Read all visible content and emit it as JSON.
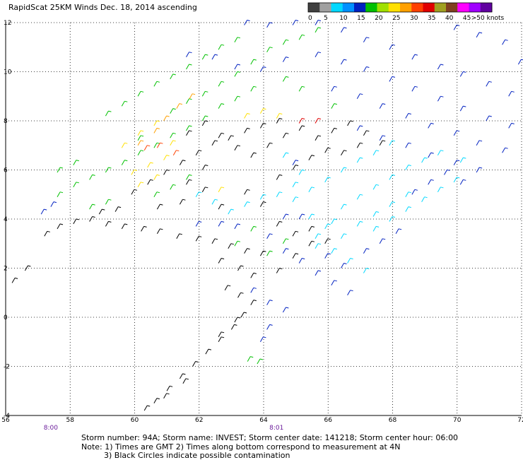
{
  "chart_data": {
    "type": "scatter",
    "title": "RapidScat 25KM Winds Dec. 18, 2014 ascending",
    "x_ticks": [
      "56",
      "58",
      "60",
      "62",
      "64",
      "66",
      "68",
      "70",
      "72"
    ],
    "y_ticks": [
      "12",
      "10",
      "8",
      "6",
      "4",
      "2",
      "0",
      "-2",
      "-4"
    ],
    "xlim": [
      56,
      72
    ],
    "ylim": [
      -4,
      12
    ],
    "grid": true,
    "time_labels": [
      {
        "lon": 57.4,
        "text": "8:00"
      },
      {
        "lon": 64.4,
        "text": "8:01"
      }
    ],
    "colorbar": {
      "ticks": [
        "0",
        "5",
        "10",
        "15",
        "20",
        "25",
        "30",
        "35",
        "40",
        "45",
        ">50 knots"
      ],
      "colors": [
        "#404040",
        "#a0a0a0",
        "#00d8ff",
        "#0090ff",
        "#0020c0",
        "#00c000",
        "#a0e000",
        "#ffe000",
        "#ffa000",
        "#ff4000",
        "#e00000",
        "#a0a020",
        "#804020",
        "#ff00ff",
        "#a000ff",
        "#6000a0"
      ]
    },
    "series": [
      {
        "color": "#000000",
        "points": [
          [
            57.2,
            3.3
          ],
          [
            57.6,
            3.6
          ],
          [
            58.1,
            3.8
          ],
          [
            58.6,
            3.9
          ],
          [
            59.1,
            3.7
          ],
          [
            59.6,
            3.6
          ],
          [
            60.2,
            3.5
          ],
          [
            60.7,
            3.4
          ],
          [
            61.3,
            3.2
          ],
          [
            61.9,
            3.1
          ],
          [
            62.4,
            3.0
          ],
          [
            62.9,
            2.8
          ],
          [
            63.4,
            2.6
          ],
          [
            63.9,
            2.5
          ],
          [
            62.6,
            2.2
          ],
          [
            63.2,
            1.9
          ],
          [
            63.6,
            1.6
          ],
          [
            62.8,
            1.1
          ],
          [
            63.2,
            0.8
          ],
          [
            63.6,
            0.5
          ],
          [
            63.3,
            0.0
          ],
          [
            63.0,
            -0.5
          ],
          [
            62.6,
            -1.0
          ],
          [
            62.2,
            -1.5
          ],
          [
            61.8,
            -2.0
          ],
          [
            61.4,
            -2.5
          ],
          [
            61.0,
            -3.0
          ],
          [
            60.6,
            -3.5
          ],
          [
            60.3,
            -3.8
          ],
          [
            59.9,
            5.0
          ],
          [
            60.4,
            5.4
          ],
          [
            60.9,
            5.8
          ],
          [
            61.4,
            6.2
          ],
          [
            61.9,
            6.6
          ],
          [
            62.4,
            7.0
          ],
          [
            62.9,
            7.2
          ],
          [
            63.4,
            7.5
          ],
          [
            63.9,
            7.7
          ],
          [
            64.4,
            7.9
          ],
          [
            61.6,
            7.4
          ],
          [
            62.1,
            7.8
          ],
          [
            62.6,
            7.3
          ],
          [
            63.1,
            6.8
          ],
          [
            63.6,
            6.5
          ],
          [
            64.1,
            6.9
          ],
          [
            64.6,
            7.3
          ],
          [
            65.1,
            7.6
          ],
          [
            65.6,
            7.2
          ],
          [
            66.1,
            7.5
          ],
          [
            66.6,
            7.8
          ],
          [
            67.1,
            7.4
          ],
          [
            67.6,
            7.0
          ],
          [
            64.4,
            5.6
          ],
          [
            64.9,
            6.0
          ],
          [
            65.4,
            6.4
          ],
          [
            65.9,
            6.7
          ],
          [
            63.4,
            5.0
          ],
          [
            63.9,
            4.5
          ],
          [
            64.4,
            3.7
          ],
          [
            64.9,
            3.3
          ],
          [
            65.4,
            2.9
          ],
          [
            62.1,
            5.1
          ],
          [
            62.6,
            4.4
          ],
          [
            61.4,
            4.6
          ],
          [
            60.7,
            4.4
          ],
          [
            58.9,
            4.2
          ],
          [
            59.4,
            4.3
          ],
          [
            61.6,
            5.4
          ],
          [
            62.1,
            6.0
          ],
          [
            66.4,
            6.6
          ],
          [
            66.9,
            6.9
          ],
          [
            65.4,
            3.5
          ],
          [
            65.9,
            3.0
          ],
          [
            64.4,
            1.8
          ],
          [
            64.9,
            2.4
          ],
          [
            63.1,
            -0.2
          ],
          [
            62.6,
            -0.8
          ],
          [
            60.9,
            -3.3
          ],
          [
            61.5,
            -2.7
          ],
          [
            56.2,
            1.4
          ],
          [
            56.6,
            1.9
          ]
        ]
      },
      {
        "color": "#00c000",
        "points": [
          [
            57.6,
            4.9
          ],
          [
            58.1,
            5.3
          ],
          [
            58.6,
            5.6
          ],
          [
            59.1,
            5.9
          ],
          [
            59.6,
            6.2
          ],
          [
            60.1,
            6.6
          ],
          [
            60.6,
            6.9
          ],
          [
            61.1,
            7.3
          ],
          [
            61.6,
            7.6
          ],
          [
            62.1,
            8.0
          ],
          [
            62.6,
            8.5
          ],
          [
            63.1,
            8.8
          ],
          [
            63.6,
            9.2
          ],
          [
            60.6,
            4.9
          ],
          [
            61.1,
            5.2
          ],
          [
            61.6,
            5.6
          ],
          [
            59.1,
            4.6
          ],
          [
            58.6,
            4.4
          ],
          [
            60.1,
            7.2
          ],
          [
            61.1,
            8.3
          ],
          [
            61.6,
            8.7
          ],
          [
            62.6,
            9.4
          ],
          [
            63.1,
            9.8
          ],
          [
            63.6,
            10.3
          ],
          [
            64.1,
            10.8
          ],
          [
            64.6,
            11.1
          ],
          [
            65.1,
            11.3
          ],
          [
            65.6,
            11.6
          ],
          [
            63.1,
            11.2
          ],
          [
            62.6,
            10.9
          ],
          [
            62.1,
            10.5
          ],
          [
            61.6,
            10.1
          ],
          [
            61.1,
            9.7
          ],
          [
            60.6,
            9.4
          ],
          [
            60.1,
            9.0
          ],
          [
            59.6,
            8.6
          ],
          [
            59.1,
            8.2
          ],
          [
            64.1,
            2.5
          ],
          [
            64.6,
            3.0
          ],
          [
            63.6,
            3.5
          ],
          [
            63.1,
            2.9
          ],
          [
            63.8,
            -1.9
          ],
          [
            63.5,
            -1.8
          ],
          [
            66.1,
            8.5
          ],
          [
            65.1,
            9.2
          ],
          [
            64.6,
            9.6
          ],
          [
            58.1,
            6.2
          ],
          [
            57.6,
            5.9
          ],
          [
            62.1,
            9.0
          ]
        ]
      },
      {
        "color": "#0020c0",
        "points": [
          [
            57.1,
            4.2
          ],
          [
            57.4,
            4.5
          ],
          [
            63.4,
            11.9
          ],
          [
            64.1,
            11.8
          ],
          [
            64.9,
            11.9
          ],
          [
            65.6,
            11.9
          ],
          [
            66.4,
            11.6
          ],
          [
            67.1,
            11.2
          ],
          [
            67.9,
            10.9
          ],
          [
            68.6,
            10.5
          ],
          [
            69.4,
            10.1
          ],
          [
            70.1,
            9.8
          ],
          [
            70.9,
            9.4
          ],
          [
            71.6,
            9.0
          ],
          [
            66.4,
            10.3
          ],
          [
            67.1,
            10.0
          ],
          [
            67.9,
            9.6
          ],
          [
            68.6,
            9.2
          ],
          [
            69.4,
            8.8
          ],
          [
            70.1,
            8.4
          ],
          [
            70.9,
            8.0
          ],
          [
            71.6,
            7.7
          ],
          [
            65.6,
            10.6
          ],
          [
            66.1,
            9.2
          ],
          [
            66.9,
            8.9
          ],
          [
            67.6,
            8.5
          ],
          [
            68.4,
            8.1
          ],
          [
            69.1,
            7.7
          ],
          [
            69.9,
            7.4
          ],
          [
            70.6,
            7.0
          ],
          [
            71.4,
            6.7
          ],
          [
            64.6,
            10.4
          ],
          [
            63.9,
            10.0
          ],
          [
            63.1,
            10.1
          ],
          [
            62.4,
            10.5
          ],
          [
            61.6,
            10.6
          ],
          [
            66.9,
            7.6
          ],
          [
            67.6,
            7.2
          ],
          [
            68.4,
            6.9
          ],
          [
            69.1,
            6.5
          ],
          [
            69.9,
            6.2
          ],
          [
            70.6,
            5.9
          ],
          [
            64.6,
            4.0
          ],
          [
            65.1,
            4.0
          ],
          [
            64.1,
            3.2
          ],
          [
            64.6,
            2.6
          ],
          [
            65.1,
            2.2
          ],
          [
            65.6,
            1.7
          ],
          [
            66.1,
            1.3
          ],
          [
            66.6,
            0.9
          ],
          [
            63.6,
            1.0
          ],
          [
            64.1,
            0.5
          ],
          [
            64.6,
            0.2
          ],
          [
            64.1,
            -0.5
          ],
          [
            63.9,
            -1.0
          ],
          [
            65.9,
            2.4
          ],
          [
            66.4,
            2.0
          ],
          [
            67.1,
            2.6
          ],
          [
            67.6,
            3.0
          ],
          [
            68.1,
            3.4
          ],
          [
            62.6,
            3.7
          ],
          [
            63.1,
            3.6
          ],
          [
            61.9,
            3.7
          ],
          [
            68.6,
            5.0
          ],
          [
            69.1,
            5.4
          ],
          [
            69.6,
            5.8
          ],
          [
            70.1,
            5.4
          ],
          [
            64.9,
            6.2
          ],
          [
            71.9,
            10.3
          ],
          [
            71.4,
            11.1
          ],
          [
            70.6,
            11.4
          ],
          [
            69.9,
            11.7
          ]
        ]
      },
      {
        "color": "#00d8ff",
        "points": [
          [
            64.9,
            4.7
          ],
          [
            65.4,
            5.1
          ],
          [
            65.9,
            5.5
          ],
          [
            66.4,
            5.9
          ],
          [
            66.9,
            6.3
          ],
          [
            67.4,
            6.6
          ],
          [
            67.9,
            7.0
          ],
          [
            66.4,
            4.4
          ],
          [
            66.9,
            4.8
          ],
          [
            67.4,
            5.2
          ],
          [
            67.9,
            5.6
          ],
          [
            68.4,
            6.0
          ],
          [
            68.9,
            6.3
          ],
          [
            69.4,
            6.6
          ],
          [
            65.4,
            4.0
          ],
          [
            65.9,
            3.6
          ],
          [
            66.4,
            3.2
          ],
          [
            66.9,
            3.7
          ],
          [
            67.4,
            4.1
          ],
          [
            67.9,
            4.5
          ],
          [
            68.4,
            4.9
          ],
          [
            64.9,
            5.3
          ],
          [
            64.4,
            4.9
          ],
          [
            63.9,
            4.8
          ],
          [
            63.4,
            4.5
          ],
          [
            62.9,
            4.2
          ],
          [
            62.4,
            4.6
          ],
          [
            61.9,
            4.9
          ],
          [
            67.4,
            3.5
          ],
          [
            67.9,
            3.9
          ],
          [
            68.4,
            4.3
          ],
          [
            68.9,
            4.7
          ],
          [
            66.1,
            2.6
          ],
          [
            66.6,
            2.2
          ],
          [
            67.1,
            1.8
          ],
          [
            65.6,
            2.8
          ],
          [
            65.1,
            5.8
          ],
          [
            64.6,
            6.5
          ],
          [
            69.4,
            5.1
          ],
          [
            69.9,
            5.5
          ],
          [
            70.1,
            6.3
          ],
          [
            65.6,
            3.2
          ],
          [
            66.1,
            3.8
          ]
        ]
      },
      {
        "color": "#ffe000",
        "points": [
          [
            59.6,
            6.9
          ],
          [
            60.1,
            7.4
          ],
          [
            60.6,
            7.8
          ],
          [
            61.1,
            7.0
          ],
          [
            60.9,
            6.4
          ],
          [
            60.4,
            6.1
          ],
          [
            59.9,
            5.8
          ],
          [
            62.6,
            5.1
          ],
          [
            64.4,
            8.1
          ],
          [
            63.9,
            8.3
          ],
          [
            63.4,
            8.1
          ],
          [
            60.1,
            5.3
          ],
          [
            60.6,
            5.6
          ]
        ]
      },
      {
        "color": "#ffa000",
        "points": [
          [
            60.1,
            7.0
          ],
          [
            60.6,
            7.5
          ],
          [
            60.9,
            8.0
          ],
          [
            61.3,
            8.5
          ],
          [
            61.7,
            8.9
          ]
        ]
      },
      {
        "color": "#ff4000",
        "points": [
          [
            60.3,
            6.8
          ],
          [
            60.7,
            6.9
          ],
          [
            61.2,
            6.6
          ]
        ]
      },
      {
        "color": "#e00000",
        "points": [
          [
            65.1,
            7.9
          ],
          [
            65.6,
            7.9
          ]
        ]
      }
    ]
  },
  "footer": {
    "line1": "Storm number: 94A;  Storm name: INVEST;  Storm center date: 141218;  Storm center hour: 06:00",
    "line2": "Note: 1) Times are GMT  2) Times along bottom correspond to measurement at 4N",
    "line3": "3) Black Circles indicate possible contamination"
  }
}
